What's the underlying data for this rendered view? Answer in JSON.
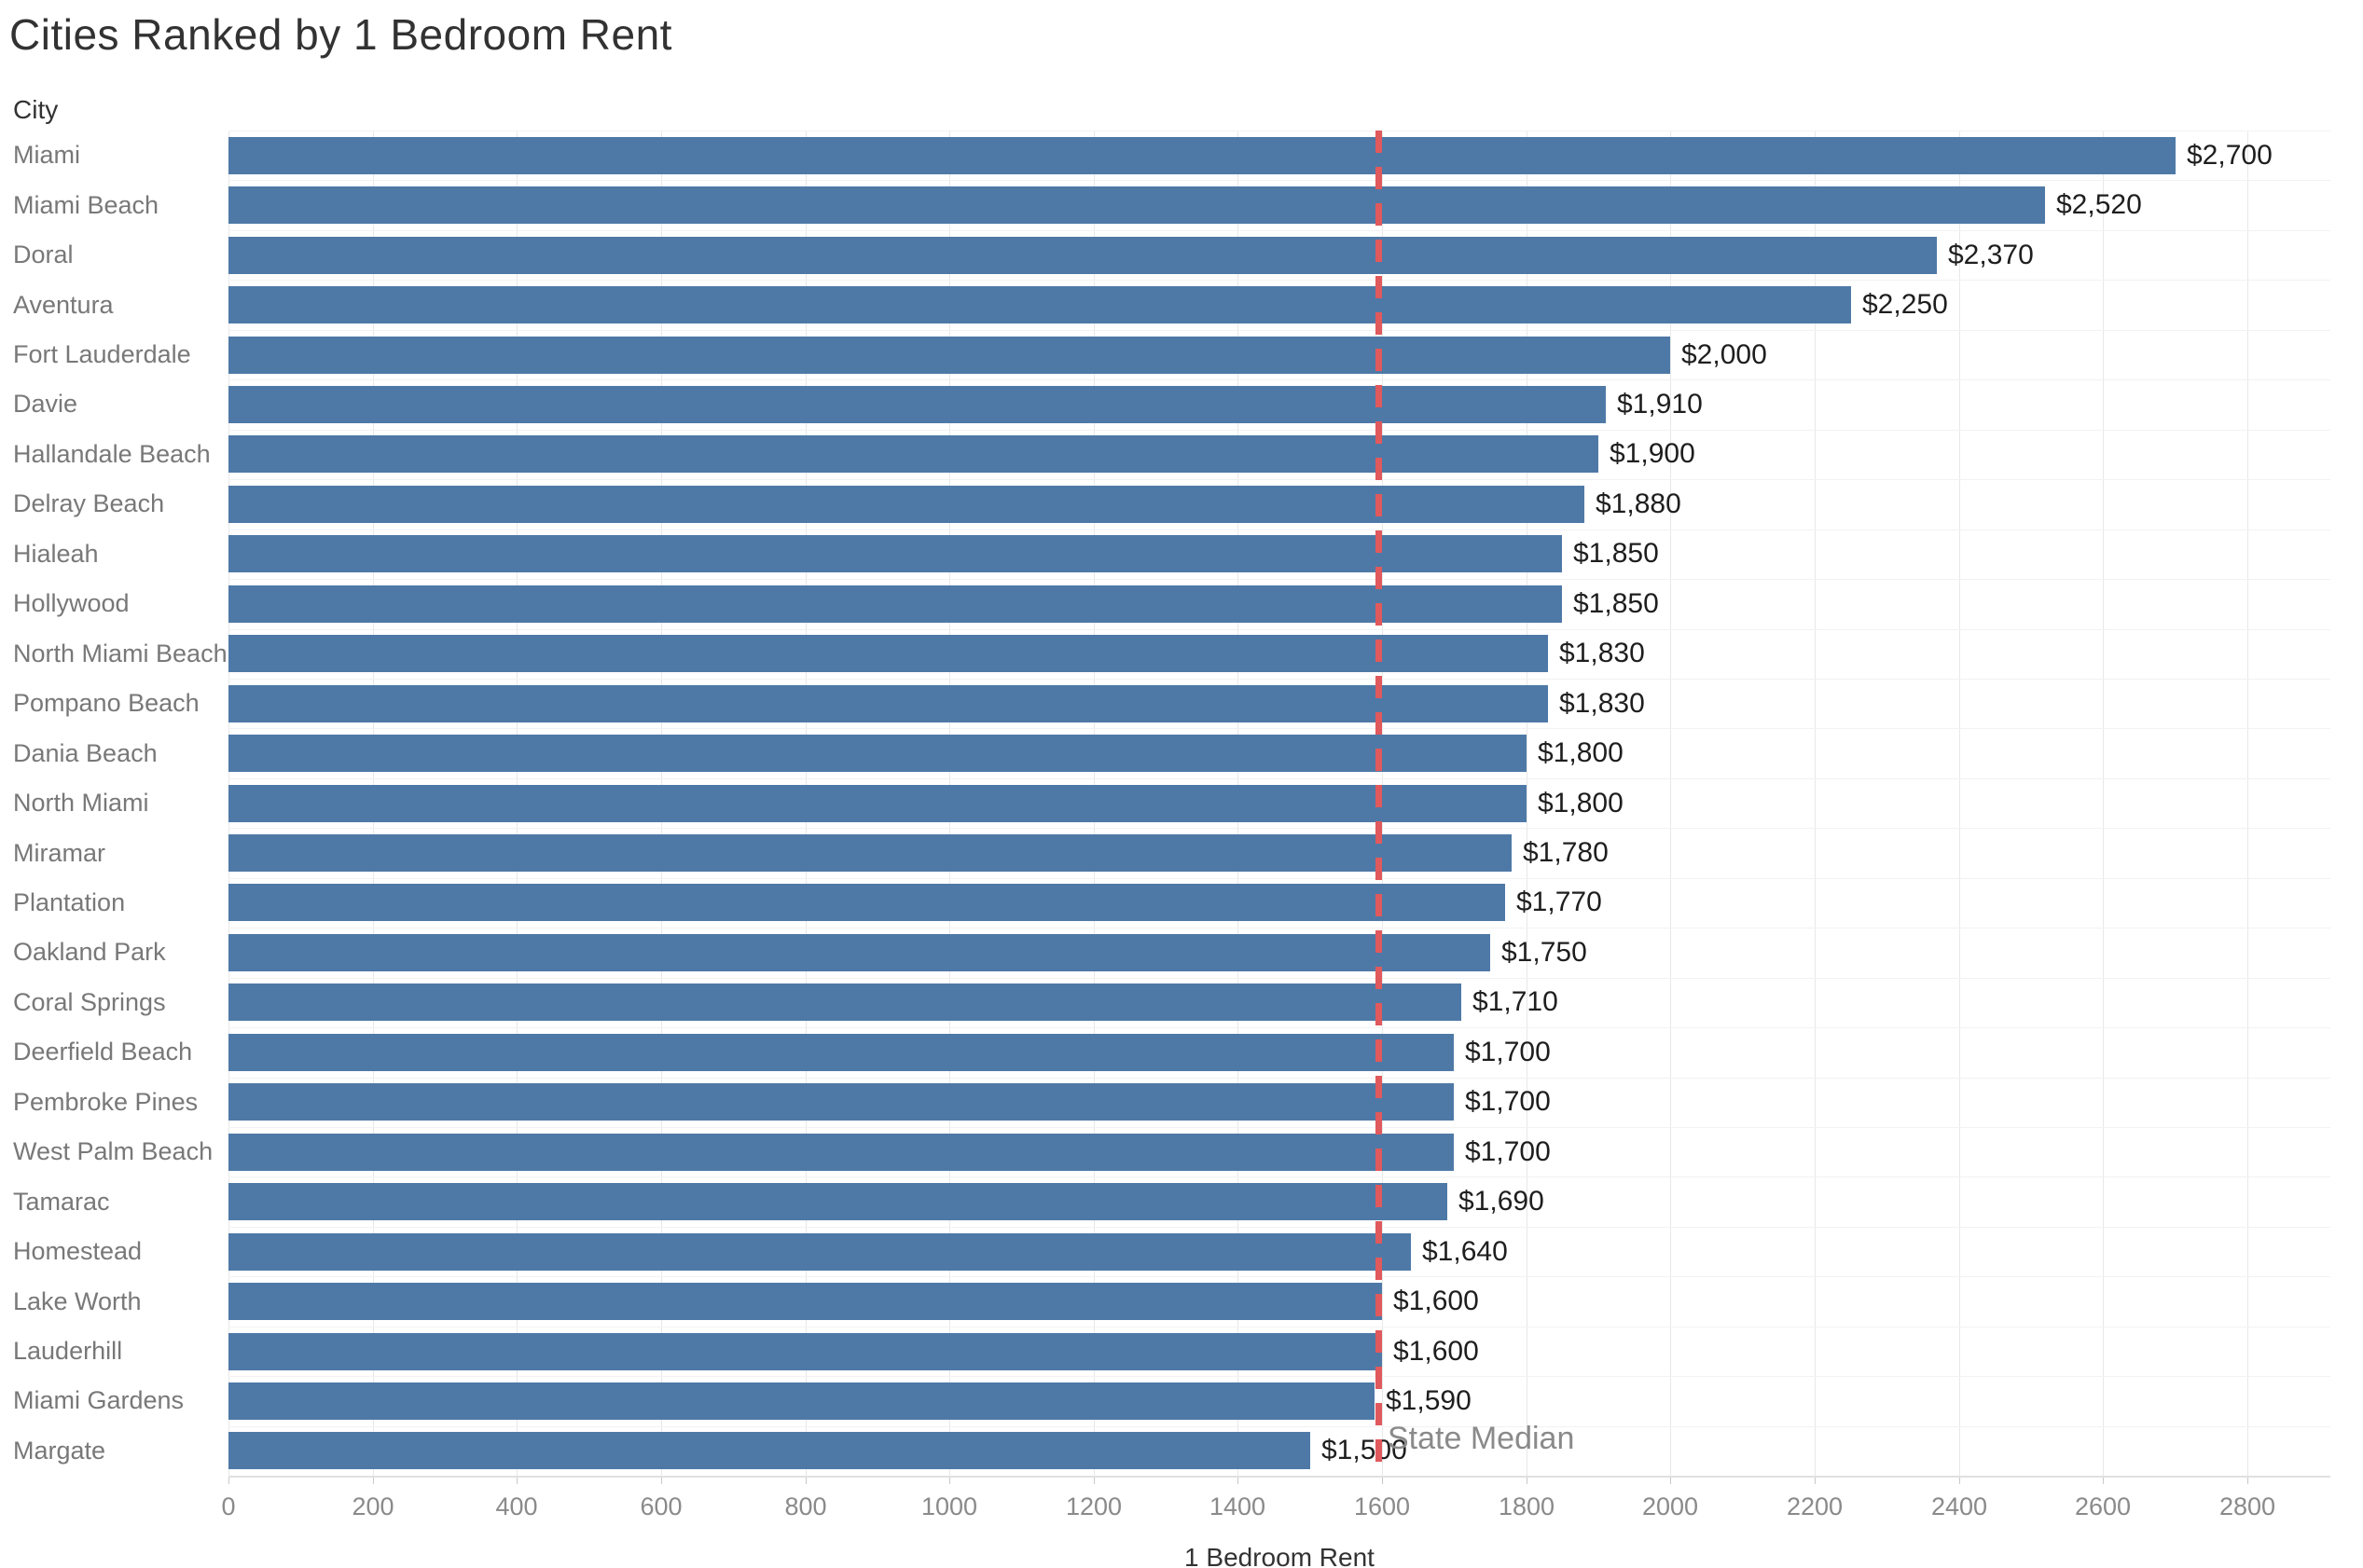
{
  "title": "Cities Ranked by 1 Bedroom Rent",
  "row_header": "City",
  "chart_data": {
    "type": "bar",
    "orientation": "horizontal",
    "title": "Cities Ranked by 1 Bedroom Rent",
    "xlabel": "1 Bedroom Rent",
    "ylabel": "City",
    "xlim": [
      0,
      2900
    ],
    "grid": "vertical",
    "bar_color": "#4e79a7",
    "categories": [
      "Miami",
      "Miami Beach",
      "Doral",
      "Aventura",
      "Fort Lauderdale",
      "Davie",
      "Hallandale Beach",
      "Delray Beach",
      "Hialeah",
      "Hollywood",
      "North Miami Beach",
      "Pompano Beach",
      "Dania Beach",
      "North Miami",
      "Miramar",
      "Plantation",
      "Oakland Park",
      "Coral Springs",
      "Deerfield Beach",
      "Pembroke Pines",
      "West Palm Beach",
      "Tamarac",
      "Homestead",
      "Lake Worth",
      "Lauderhill",
      "Miami Gardens",
      "Margate"
    ],
    "values": [
      2700,
      2520,
      2370,
      2250,
      2000,
      1910,
      1900,
      1880,
      1850,
      1850,
      1830,
      1830,
      1800,
      1800,
      1780,
      1770,
      1750,
      1710,
      1700,
      1700,
      1700,
      1690,
      1640,
      1600,
      1600,
      1590,
      1500
    ],
    "value_labels": [
      "$2,700",
      "$2,520",
      "$2,370",
      "$2,250",
      "$2,000",
      "$1,910",
      "$1,900",
      "$1,880",
      "$1,850",
      "$1,850",
      "$1,830",
      "$1,830",
      "$1,800",
      "$1,800",
      "$1,780",
      "$1,770",
      "$1,750",
      "$1,710",
      "$1,700",
      "$1,700",
      "$1,700",
      "$1,690",
      "$1,640",
      "$1,600",
      "$1,600",
      "$1,590",
      "$1,500"
    ],
    "x_ticks": [
      0,
      200,
      400,
      600,
      800,
      1000,
      1200,
      1400,
      1600,
      1800,
      2000,
      2200,
      2400,
      2600,
      2800
    ],
    "x_tick_labels": [
      "0",
      "200",
      "400",
      "600",
      "800",
      "1000",
      "1200",
      "1400",
      "1600",
      "1800",
      "2000",
      "2200",
      "2400",
      "2600",
      "2800"
    ],
    "reference_line": {
      "label": "State Median",
      "value": 1595,
      "color": "#e0595c",
      "style": "dashed"
    }
  }
}
